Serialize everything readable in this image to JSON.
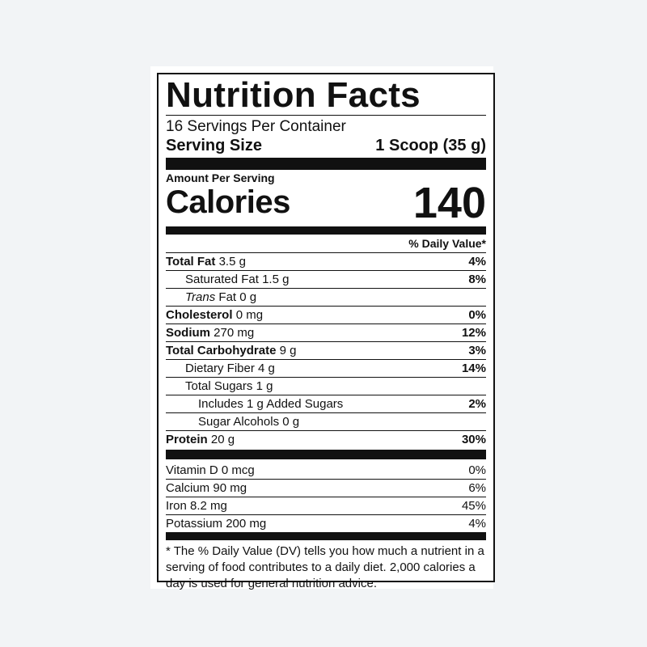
{
  "title": "Nutrition Facts",
  "servings_per_container": "16 Servings Per Container",
  "serving_size": {
    "label": "Serving Size",
    "value": "1 Scoop (35 g)"
  },
  "amount_per_serving": "Amount Per Serving",
  "calories": {
    "label": "Calories",
    "value": "140"
  },
  "daily_value_header": "% Daily Value*",
  "nutrients": {
    "total_fat": {
      "name": "Total Fat",
      "amount": "3.5 g",
      "dv": "4%"
    },
    "saturated_fat": {
      "name": "Saturated Fat",
      "amount": "1.5 g",
      "dv": "8%"
    },
    "trans_fat": {
      "name_italic": "Trans",
      "name_rest": "Fat",
      "amount": "0 g"
    },
    "cholesterol": {
      "name": "Cholesterol",
      "amount": "0 mg",
      "dv": "0%"
    },
    "sodium": {
      "name": "Sodium",
      "amount": "270 mg",
      "dv": "12%"
    },
    "total_carbohydrate": {
      "name": "Total Carbohydrate",
      "amount": "9 g",
      "dv": "3%"
    },
    "dietary_fiber": {
      "name": "Dietary Fiber",
      "amount": "4 g",
      "dv": "14%"
    },
    "total_sugars": {
      "name": "Total Sugars",
      "amount": "1 g"
    },
    "added_sugars": {
      "name": "Includes 1 g Added Sugars",
      "dv": "2%"
    },
    "sugar_alcohols": {
      "name": "Sugar Alcohols",
      "amount": "0 g"
    },
    "protein": {
      "name": "Protein",
      "amount": "20 g",
      "dv": "30%"
    }
  },
  "vitamins": [
    {
      "name": "Vitamin D",
      "amount": "0 mcg",
      "dv": "0%"
    },
    {
      "name": "Calcium",
      "amount": "90 mg",
      "dv": "6%"
    },
    {
      "name": "Iron",
      "amount": "8.2 mg",
      "dv": "45%"
    },
    {
      "name": "Potassium",
      "amount": "200 mg",
      "dv": "4%"
    }
  ],
  "footnote": "* The % Daily Value (DV) tells you how much a nutrient in a serving of food contributes to a daily diet. 2,000 calories a day is used for general nutrition advice."
}
